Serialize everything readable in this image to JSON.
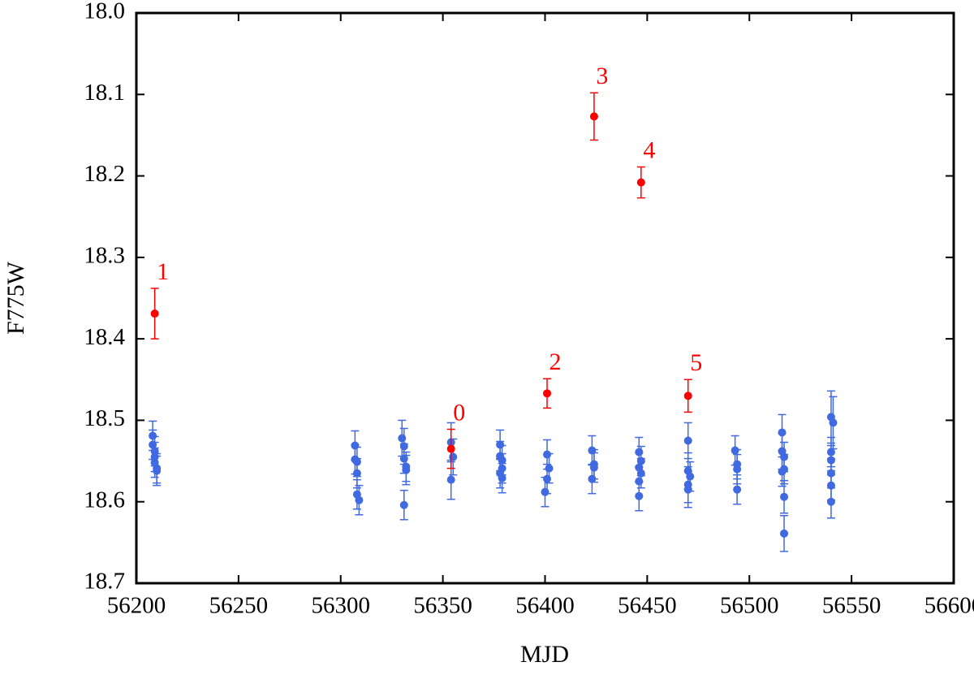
{
  "chart_data": {
    "type": "scatter",
    "xlabel": "MJD",
    "ylabel": "F775W",
    "xlim": [
      56200,
      56600
    ],
    "ylim": [
      18.0,
      18.7
    ],
    "invert_y": true,
    "xticks": [
      56200,
      56250,
      56300,
      56350,
      56400,
      56450,
      56500,
      56550,
      56600
    ],
    "yticks": [
      {
        "value": 18.0,
        "label": "18.0"
      },
      18.1,
      18.2,
      18.3,
      18.4,
      18.5,
      18.6,
      18.7
    ],
    "series": [
      {
        "color": "#4169e1",
        "x": [
          56208,
          56208,
          56209,
          56209,
          56209,
          56210,
          56210,
          56307,
          56307,
          56308,
          56308,
          56308,
          56309,
          56330,
          56331,
          56331,
          56332,
          56332,
          56331,
          56354,
          56355,
          56354,
          56378,
          56378,
          56379,
          56379,
          56378,
          56379,
          56401,
          56402,
          56401,
          56400,
          56423,
          56424,
          56424,
          56423,
          56446,
          56447,
          56446,
          56447,
          56446,
          56446,
          56470,
          56470,
          56471,
          56470,
          56470,
          56493,
          56494,
          56494,
          56494,
          56516,
          56516,
          56517,
          56517,
          56516,
          56517,
          56517,
          56540,
          56541,
          56540,
          56540,
          56540,
          56540,
          56540
        ],
        "values": [
          18.519,
          18.53,
          18.538,
          18.545,
          18.552,
          18.559,
          18.562,
          18.531,
          18.548,
          18.551,
          18.565,
          18.591,
          18.598,
          18.522,
          18.532,
          18.547,
          18.557,
          18.561,
          18.604,
          18.527,
          18.545,
          18.573,
          18.53,
          18.544,
          18.549,
          18.559,
          18.565,
          18.571,
          18.542,
          18.559,
          18.572,
          18.588,
          18.537,
          18.554,
          18.558,
          18.572,
          18.539,
          18.55,
          18.558,
          18.565,
          18.575,
          18.593,
          18.525,
          18.562,
          18.569,
          18.579,
          18.585,
          18.537,
          18.554,
          18.56,
          18.585,
          18.515,
          18.538,
          18.545,
          18.56,
          18.563,
          18.594,
          18.639,
          18.496,
          18.503,
          18.539,
          18.549,
          18.565,
          18.58,
          18.6
        ],
        "errors": [
          0.018,
          0.018,
          0.018,
          0.018,
          0.018,
          0.018,
          0.018,
          0.018,
          0.018,
          0.018,
          0.018,
          0.018,
          0.018,
          0.022,
          0.022,
          0.018,
          0.018,
          0.018,
          0.018,
          0.024,
          0.022,
          0.024,
          0.018,
          0.018,
          0.018,
          0.018,
          0.018,
          0.018,
          0.018,
          0.018,
          0.018,
          0.018,
          0.018,
          0.018,
          0.018,
          0.018,
          0.018,
          0.018,
          0.018,
          0.018,
          0.018,
          0.018,
          0.022,
          0.022,
          0.018,
          0.022,
          0.022,
          0.018,
          0.018,
          0.018,
          0.018,
          0.022,
          0.022,
          0.018,
          0.018,
          0.018,
          0.02,
          0.022,
          0.032,
          0.032,
          0.018,
          0.018,
          0.018,
          0.018,
          0.02
        ]
      },
      {
        "color": "#ff0000",
        "x": [
          56209,
          56354,
          56401,
          56424,
          56447,
          56470
        ],
        "values": [
          18.369,
          18.535,
          18.467,
          18.127,
          18.208,
          18.47
        ],
        "errors": [
          0.031,
          0.024,
          0.018,
          0.029,
          0.019,
          0.02
        ],
        "labels": [
          "1",
          "0",
          "2",
          "3",
          "4",
          "5"
        ]
      }
    ]
  }
}
